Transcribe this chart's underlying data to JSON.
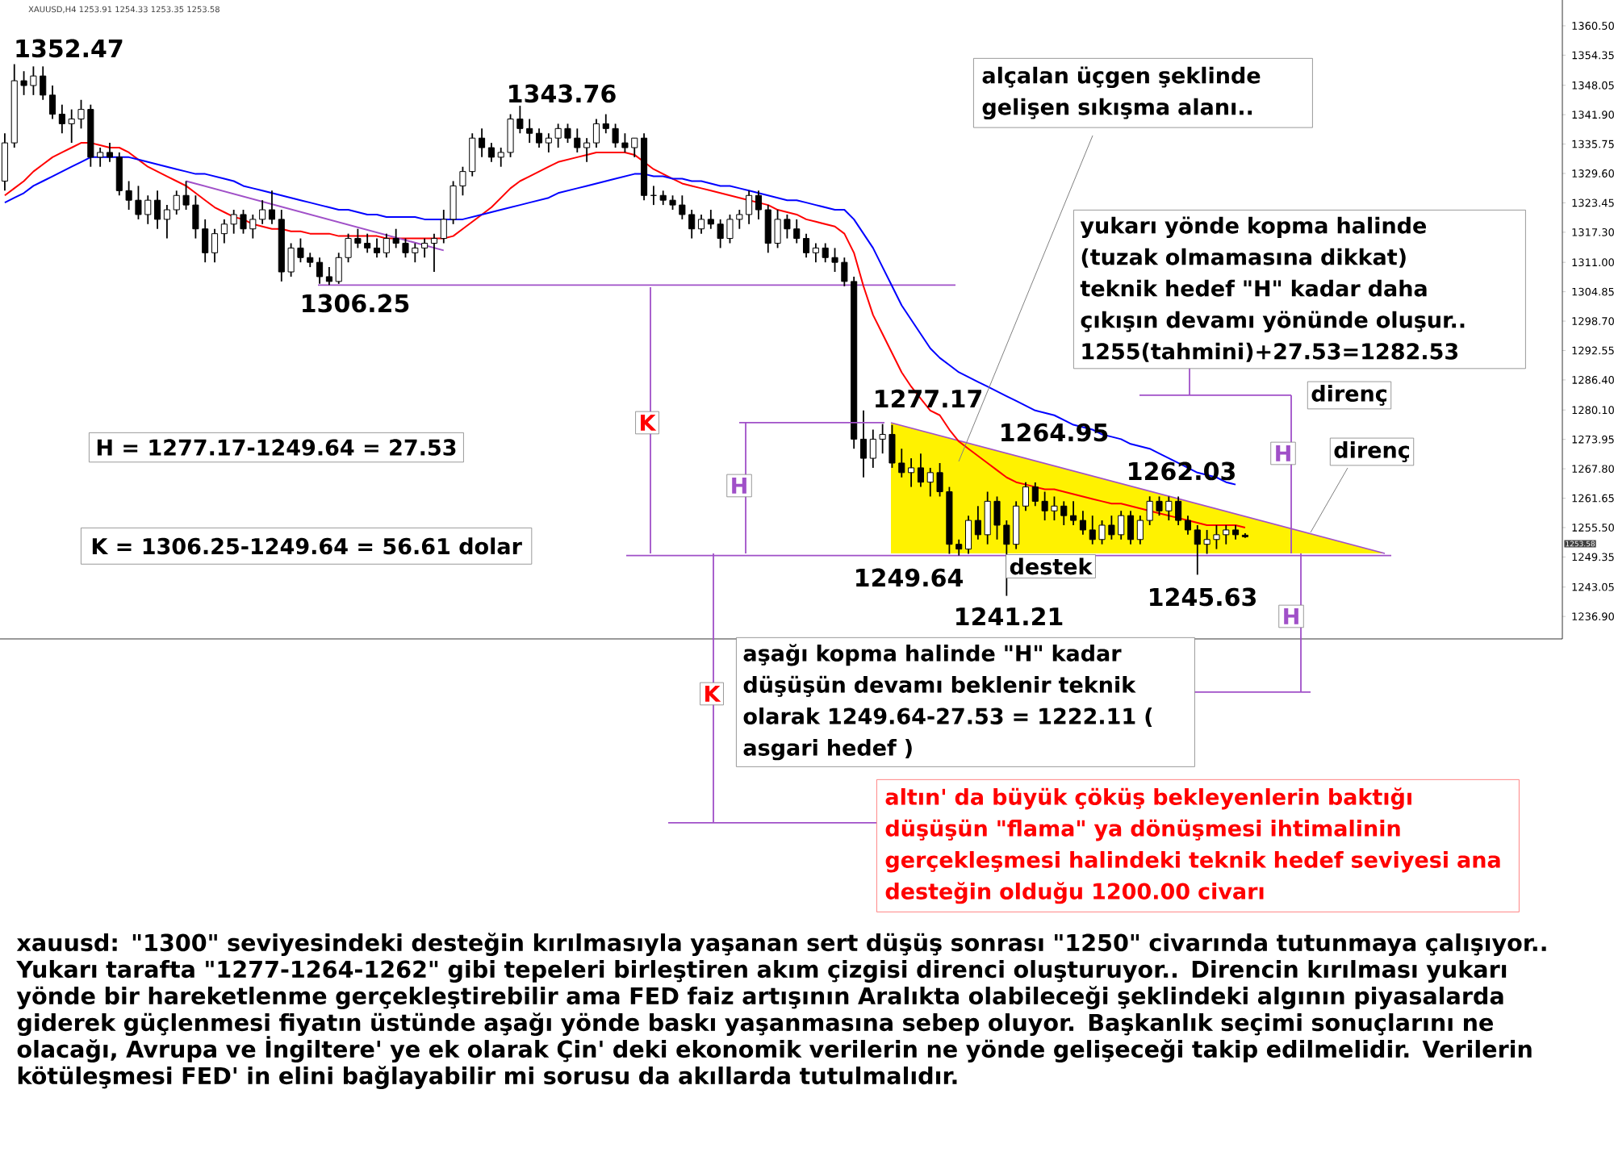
{
  "chart_data": {
    "type": "candlestick",
    "categories": [
      null,
      null,
      null,
      null,
      null,
      null,
      null,
      null,
      null,
      null,
      null,
      null,
      null,
      null,
      null,
      null,
      null,
      null,
      null,
      null,
      null,
      null,
      null,
      null,
      null,
      null,
      null,
      null,
      null,
      null,
      null,
      null,
      null,
      null,
      null,
      null,
      null,
      null,
      null,
      null,
      null,
      null,
      null,
      null,
      null,
      null,
      null,
      null,
      null,
      null,
      null,
      null,
      null,
      null,
      null,
      null,
      null,
      null,
      null,
      null,
      null,
      null,
      null,
      null,
      null,
      null,
      null,
      null,
      null,
      null,
      null,
      null,
      null,
      null,
      null,
      null,
      null,
      null,
      null,
      null,
      null,
      null,
      null,
      null,
      null,
      null,
      null,
      null,
      null,
      null,
      null,
      null,
      null,
      null,
      null,
      null,
      null,
      null,
      null,
      null,
      null,
      null,
      null,
      null,
      null,
      null,
      null,
      null,
      null,
      null,
      null,
      null,
      null,
      null,
      null,
      null,
      null,
      null,
      null,
      null,
      null,
      null,
      null,
      null,
      null,
      null,
      null,
      null,
      null,
      null,
      null
    ],
    "ohlc": [
      [
        1328,
        1338,
        1326,
        1336
      ],
      [
        1336,
        1352.47,
        1335,
        1349
      ],
      [
        1349,
        1351,
        1346,
        1348
      ],
      [
        1348,
        1352,
        1346,
        1350
      ],
      [
        1350,
        1352,
        1345,
        1346
      ],
      [
        1346,
        1348,
        1341,
        1342
      ],
      [
        1342,
        1344,
        1338,
        1340
      ],
      [
        1340,
        1343,
        1336,
        1341
      ],
      [
        1341,
        1345,
        1339,
        1343
      ],
      [
        1343,
        1344,
        1331,
        1333
      ],
      [
        1333,
        1335,
        1331,
        1334
      ],
      [
        1334,
        1336,
        1332,
        1333
      ],
      [
        1333,
        1334,
        1325,
        1326
      ],
      [
        1326,
        1328,
        1322,
        1324
      ],
      [
        1324,
        1327,
        1320,
        1321
      ],
      [
        1321,
        1325,
        1319,
        1324
      ],
      [
        1324,
        1326,
        1318,
        1320
      ],
      [
        1320,
        1323,
        1316,
        1322
      ],
      [
        1322,
        1326,
        1321,
        1325
      ],
      [
        1325,
        1328,
        1322,
        1323
      ],
      [
        1323,
        1325,
        1316,
        1318
      ],
      [
        1318,
        1320,
        1311,
        1313
      ],
      [
        1313,
        1318,
        1311,
        1317
      ],
      [
        1317,
        1320,
        1315,
        1319
      ],
      [
        1319,
        1322,
        1317,
        1321
      ],
      [
        1321,
        1322,
        1317,
        1318
      ],
      [
        1318,
        1321,
        1316,
        1320
      ],
      [
        1320,
        1324,
        1319,
        1322
      ],
      [
        1322,
        1326,
        1319,
        1320
      ],
      [
        1320,
        1322,
        1307,
        1309
      ],
      [
        1309,
        1315,
        1308,
        1314
      ],
      [
        1314,
        1316,
        1311,
        1312
      ],
      [
        1312,
        1313,
        1310,
        1311
      ],
      [
        1311,
        1312,
        1306.5,
        1308
      ],
      [
        1308,
        1310,
        1306.25,
        1307
      ],
      [
        1307,
        1313,
        1306.5,
        1312
      ],
      [
        1312,
        1317,
        1311,
        1316
      ],
      [
        1316,
        1318,
        1314,
        1315
      ],
      [
        1315,
        1317,
        1313,
        1314
      ],
      [
        1314,
        1316,
        1312,
        1313
      ],
      [
        1313,
        1317,
        1312,
        1316
      ],
      [
        1316,
        1318,
        1314,
        1315
      ],
      [
        1315,
        1316,
        1312,
        1313
      ],
      [
        1313,
        1315,
        1311,
        1314
      ],
      [
        1314,
        1316,
        1312,
        1315
      ],
      [
        1315,
        1317,
        1309,
        1316
      ],
      [
        1316,
        1322,
        1315,
        1320
      ],
      [
        1320,
        1328,
        1319,
        1327
      ],
      [
        1327,
        1331,
        1325,
        1330
      ],
      [
        1330,
        1338,
        1329,
        1337
      ],
      [
        1337,
        1339,
        1333,
        1335
      ],
      [
        1335,
        1336,
        1332,
        1333
      ],
      [
        1333,
        1335,
        1331,
        1334
      ],
      [
        1334,
        1342,
        1333,
        1341
      ],
      [
        1341,
        1343.76,
        1338,
        1339
      ],
      [
        1339,
        1341,
        1336,
        1338
      ],
      [
        1338,
        1339,
        1335,
        1336
      ],
      [
        1336,
        1338,
        1334,
        1337
      ],
      [
        1337,
        1340,
        1335,
        1339
      ],
      [
        1339,
        1340,
        1336,
        1337
      ],
      [
        1337,
        1339,
        1334,
        1335
      ],
      [
        1335,
        1337,
        1332,
        1336
      ],
      [
        1336,
        1341,
        1335,
        1340
      ],
      [
        1340,
        1342,
        1338,
        1339
      ],
      [
        1339,
        1340,
        1335,
        1336
      ],
      [
        1336,
        1338,
        1334,
        1335
      ],
      [
        1335,
        1337,
        1333,
        1337
      ],
      [
        1337,
        1338,
        1324,
        1325
      ],
      [
        1325,
        1327,
        1323,
        1325
      ],
      [
        1325,
        1326,
        1323,
        1324
      ],
      [
        1324,
        1325,
        1322,
        1323
      ],
      [
        1323,
        1325,
        1320,
        1321
      ],
      [
        1321,
        1322,
        1316,
        1318
      ],
      [
        1318,
        1321,
        1317,
        1320
      ],
      [
        1320,
        1322,
        1318,
        1319
      ],
      [
        1319,
        1320,
        1314,
        1316
      ],
      [
        1316,
        1321,
        1315,
        1320
      ],
      [
        1320,
        1322,
        1318,
        1321
      ],
      [
        1321,
        1326,
        1319,
        1325
      ],
      [
        1325,
        1326,
        1320,
        1322
      ],
      [
        1322,
        1323,
        1313,
        1315
      ],
      [
        1315,
        1322,
        1314,
        1320
      ],
      [
        1320,
        1321,
        1316,
        1318
      ],
      [
        1318,
        1320,
        1315,
        1316
      ],
      [
        1316,
        1317,
        1312,
        1313
      ],
      [
        1313,
        1315,
        1311,
        1314
      ],
      [
        1314,
        1315,
        1311,
        1312
      ],
      [
        1312,
        1314,
        1309,
        1311
      ],
      [
        1311,
        1312,
        1306,
        1307
      ],
      [
        1307,
        1308,
        1272,
        1274
      ],
      [
        1274,
        1280,
        1266,
        1270
      ],
      [
        1270,
        1276,
        1268,
        1274
      ],
      [
        1274,
        1277.17,
        1271,
        1275
      ],
      [
        1275,
        1277,
        1268,
        1269
      ],
      [
        1269,
        1272,
        1266,
        1267
      ],
      [
        1267,
        1270,
        1264,
        1268
      ],
      [
        1268,
        1271,
        1264,
        1265
      ],
      [
        1265,
        1268,
        1262,
        1267
      ],
      [
        1267,
        1269,
        1262,
        1263
      ],
      [
        1263,
        1264,
        1250,
        1252
      ],
      [
        1252,
        1253,
        1249.64,
        1251
      ],
      [
        1251,
        1258,
        1250,
        1257
      ],
      [
        1257,
        1260,
        1253,
        1254
      ],
      [
        1254,
        1263,
        1252,
        1261
      ],
      [
        1261,
        1262,
        1253,
        1256
      ],
      [
        1256,
        1257,
        1241.21,
        1252
      ],
      [
        1252,
        1261,
        1251,
        1260
      ],
      [
        1260,
        1265,
        1259,
        1264
      ],
      [
        1264,
        1264.95,
        1260,
        1261
      ],
      [
        1261,
        1263,
        1257,
        1259
      ],
      [
        1259,
        1262,
        1257,
        1260
      ],
      [
        1260,
        1261,
        1256,
        1258
      ],
      [
        1258,
        1261,
        1256,
        1257
      ],
      [
        1257,
        1259,
        1254,
        1255
      ],
      [
        1255,
        1258,
        1252,
        1253
      ],
      [
        1253,
        1257,
        1252,
        1256
      ],
      [
        1256,
        1258,
        1253,
        1254
      ],
      [
        1254,
        1259,
        1253,
        1258
      ],
      [
        1258,
        1259,
        1252,
        1253
      ],
      [
        1253,
        1258,
        1252,
        1257
      ],
      [
        1257,
        1262.03,
        1256,
        1261
      ],
      [
        1261,
        1262,
        1258,
        1259
      ],
      [
        1259,
        1262,
        1257,
        1261
      ],
      [
        1261,
        1262,
        1256,
        1257
      ],
      [
        1257,
        1258,
        1254,
        1255
      ],
      [
        1255,
        1256,
        1245.63,
        1252
      ],
      [
        1252,
        1255,
        1250,
        1253
      ],
      [
        1253,
        1256,
        1251,
        1254
      ],
      [
        1254,
        1256,
        1252,
        1255
      ],
      [
        1255,
        1256,
        1253,
        1254
      ],
      [
        1253.91,
        1254.33,
        1253.35,
        1253.58
      ]
    ],
    "series": [
      {
        "type": "line",
        "color": "#ff0000",
        "values": [
          1325,
          1326.5,
          1328,
          1330,
          1331.5,
          1333,
          1334,
          1335,
          1336,
          1336,
          1335.5,
          1335,
          1335,
          1334,
          1332.5,
          1331,
          1330,
          1329,
          1328,
          1327,
          1325.5,
          1324,
          1322.5,
          1321.5,
          1320.5,
          1320,
          1319,
          1318.5,
          1318,
          1318,
          1317.5,
          1317.5,
          1317,
          1317,
          1317,
          1316.5,
          1316.5,
          1316.5,
          1316.5,
          1316.5,
          1316,
          1316,
          1316,
          1316,
          1316,
          1316,
          1316,
          1316.5,
          1318,
          1319.5,
          1321,
          1322.5,
          1324.5,
          1326.5,
          1328,
          1329,
          1330,
          1331,
          1332,
          1332.5,
          1333,
          1333.5,
          1334,
          1334,
          1334,
          1334,
          1333.5,
          1332,
          1330.5,
          1329.5,
          1328.5,
          1327.5,
          1327,
          1326.5,
          1326,
          1325.5,
          1325,
          1324.5,
          1324,
          1323.5,
          1323,
          1322,
          1321.5,
          1321,
          1320,
          1319.5,
          1319,
          1318.5,
          1317,
          1313,
          1306,
          1300,
          1296,
          1292,
          1288,
          1285,
          1282.5,
          1280,
          1279,
          1276,
          1273.5,
          1272,
          1270.5,
          1269,
          1267.5,
          1266,
          1265,
          1264.5,
          1264,
          1263.5,
          1263.5,
          1263,
          1262.5,
          1262,
          1261.5,
          1261,
          1260.5,
          1260.5,
          1260,
          1259.5,
          1259,
          1258.5,
          1258,
          1257.5,
          1257,
          1256.5,
          1256,
          1256,
          1256,
          1256,
          1255.5
        ]
      },
      {
        "type": "line",
        "color": "#0000ff",
        "values": [
          1323.5,
          1324.5,
          1325.5,
          1327,
          1328,
          1329,
          1330,
          1331,
          1332,
          1333,
          1333,
          1333,
          1333,
          1333,
          1332.5,
          1332,
          1331.5,
          1331,
          1330.5,
          1330,
          1329.5,
          1329.5,
          1329,
          1328.5,
          1328,
          1327,
          1326.5,
          1326,
          1325.5,
          1325,
          1324.5,
          1324,
          1323.5,
          1323,
          1322.5,
          1322,
          1322,
          1321.5,
          1321,
          1321,
          1320.5,
          1320.5,
          1320.5,
          1320.5,
          1320,
          1320,
          1320,
          1320,
          1320,
          1320.5,
          1321,
          1321.5,
          1322,
          1322.5,
          1323,
          1323.5,
          1324,
          1324.5,
          1325.5,
          1326,
          1326.5,
          1327,
          1327.5,
          1328,
          1328.5,
          1329,
          1329.5,
          1329.5,
          1329,
          1329,
          1328.5,
          1328.5,
          1328,
          1328,
          1327.5,
          1327,
          1327,
          1326.5,
          1326,
          1325.5,
          1325,
          1324.5,
          1324,
          1324,
          1323.5,
          1323,
          1322.5,
          1322,
          1322,
          1320,
          1317,
          1314,
          1310,
          1306,
          1302,
          1299,
          1296,
          1293,
          1291,
          1289.5,
          1288,
          1287,
          1286,
          1285,
          1284,
          1283,
          1282,
          1281,
          1280,
          1279.5,
          1279,
          1278,
          1277,
          1276.5,
          1276,
          1275,
          1274.5,
          1274,
          1273,
          1272.5,
          1272,
          1271,
          1270,
          1269,
          1268,
          1267,
          1266.5,
          1266,
          1265,
          1264.5,
          null
        ]
      },
      {
        "type": "line",
        "color": "#a050c8",
        "values": [
          null,
          null,
          null,
          null,
          null,
          null,
          null,
          null,
          null,
          null,
          null,
          null,
          null,
          null,
          null,
          null,
          null,
          null,
          null,
          1328,
          null,
          null,
          null,
          null,
          null,
          null,
          null,
          null,
          null,
          null,
          null,
          null,
          null,
          null,
          null,
          null,
          null,
          null,
          null,
          null,
          null,
          null,
          null,
          null,
          null,
          null,
          1313.5,
          null,
          null,
          null,
          null,
          null,
          null,
          null,
          null,
          null,
          null,
          null,
          null,
          null,
          null,
          null,
          null,
          null,
          null,
          null,
          null,
          null,
          null,
          null,
          null,
          null,
          null,
          null,
          null,
          null,
          null,
          null,
          null,
          null,
          null,
          null,
          null,
          null,
          null,
          null,
          null,
          null,
          null,
          null,
          null,
          null,
          null,
          null,
          null,
          null,
          null,
          null,
          null,
          null,
          null,
          null,
          null,
          null,
          null,
          null,
          null,
          null,
          null,
          null,
          null,
          null,
          null,
          null,
          null,
          null,
          null,
          null,
          null,
          null,
          null,
          null,
          null,
          null,
          null,
          null,
          null,
          null,
          null,
          null,
          null
        ]
      }
    ],
    "ylim": [
      1232.2,
      1365.9
    ],
    "yticks": [
      {
        "value": 1236.9,
        "label": "1236.90"
      },
      {
        "value": 1243.05,
        "label": "1243.05"
      },
      {
        "value": 1249.35,
        "label": "1249.35"
      },
      {
        "value": 1255.5,
        "label": "1255.50"
      },
      {
        "value": 1261.65,
        "label": "1261.65"
      },
      {
        "value": 1267.8,
        "label": "1267.80"
      },
      {
        "value": 1273.95,
        "label": "1273.95"
      },
      {
        "value": 1280.1,
        "label": "1280.10"
      },
      {
        "value": 1286.4,
        "label": "1286.40"
      },
      {
        "value": 1292.55,
        "label": "1292.55"
      },
      {
        "value": 1298.7,
        "label": "1298.70"
      },
      {
        "value": 1304.85,
        "label": "1304.85"
      },
      {
        "value": 1311,
        "label": "1311.00"
      },
      {
        "value": 1317.3,
        "label": "1317.30"
      },
      {
        "value": 1323.45,
        "label": "1323.45"
      },
      {
        "value": 1329.6,
        "label": "1329.60"
      },
      {
        "value": 1335.75,
        "label": "1335.75"
      },
      {
        "value": 1341.9,
        "label": "1341.90"
      },
      {
        "value": 1348.05,
        "label": "1348.05"
      },
      {
        "value": 1354.35,
        "label": "1354.35"
      },
      {
        "value": 1360.5,
        "label": "1360.50"
      }
    ],
    "ref_lines": [
      {
        "axis": "y",
        "value": 1306.25,
        "color": "#a050c8"
      },
      {
        "axis": "y",
        "value": 1249.64,
        "color": "#a050c8"
      }
    ],
    "annotations": [
      "XAUUSD,H4  1253.91 1254.33 1253.35 1253.58",
      "1352.47",
      "1343.76",
      "1306.25",
      "1277.17",
      "1264.95",
      "1262.03",
      "1249.64",
      "1241.21",
      "1245.63",
      "alçalan üçgen şeklinde gelişen sıkışma alanı..",
      "yukarı yönde kopma halinde (tuzak olmamasına dikkat) teknik hedef \"H\" kadar daha çıkışın devamı yönünde oluşur.. 1255(tahmini)+27.53=1282.53",
      "H = 1277.17-1249.64 = 27.53",
      "K = 1306.25-1249.64 = 56.61 dolar",
      "destek",
      "direnç",
      "direnç",
      "K",
      "H",
      "H",
      "H",
      "K",
      "aşağı kopma halinde \"H\" kadar düşüşün devamı beklenir teknik olarak 1249.64-27.53 = 1222.11 ( asgari hedef )",
      "altın' da büyük çöküş bekleyenlerin baktığı düşüşün \"flama\" ya dönüşmesi ihtimalinin gerçekleşmesi halindeki teknik hedef seviyesi ana desteğin olduğu 1200.00 civarı",
      "xauusd: \"1300\" seviyesindeki desteğin kırılmasıyla yaşanan sert düşüş sonrası \"1250\" civarında tutunmaya çalışıyor.. Yukarı tarafta \"1277-1264-1262\" gibi tepeleri birleştiren akım çizgisi direnci oluşturuyor.. Direncin kırılması yukarı yönde bir hareketlenme gerçekleştirebilir ama FED faiz artışının Aralıkta olabileceği şeklindeki algının piyasalarda giderek güçlenmesi fiyatın üstünde aşağı yönde baskı yaşanmasına sebep oluyor. Başkanlık seçimi sonuçlarını ne olacağı, Avrupa ve İngiltere' ye ek olarak Çin' deki ekonomik verilerin ne yönde gelişeceği takip edilmelidir. Verilerin kötüleşmesi FED' in elini bağlayabilir mi sorusu da akıllarda tutulmalıdır.",
      "1253.58"
    ]
  }
}
